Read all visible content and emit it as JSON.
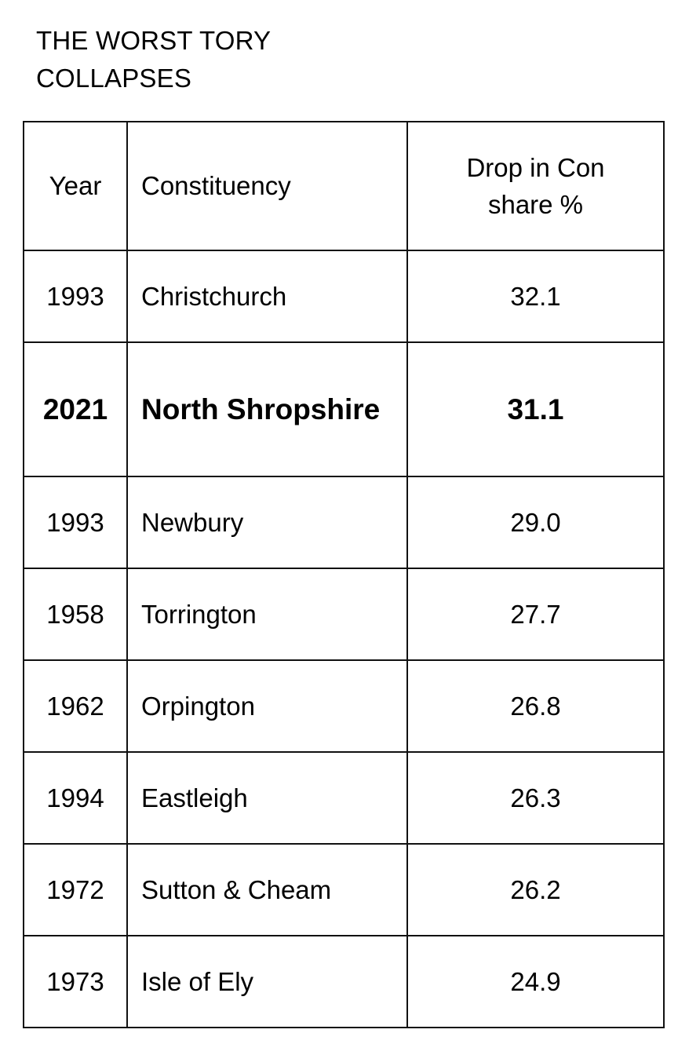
{
  "title": "THE WORST TORY COLLAPSES",
  "table": {
    "headers": {
      "year": "Year",
      "constituency": "Constituency",
      "drop": "Drop in Con share %"
    },
    "rows": [
      {
        "year": "1993",
        "constituency": "Christchurch",
        "drop": "32.1",
        "highlight": false
      },
      {
        "year": "2021",
        "constituency": "North Shropshire",
        "drop": "31.1",
        "highlight": true
      },
      {
        "year": "1993",
        "constituency": "Newbury",
        "drop": "29.0",
        "highlight": false
      },
      {
        "year": "1958",
        "constituency": "Torrington",
        "drop": "27.7",
        "highlight": false
      },
      {
        "year": "1962",
        "constituency": "Orpington",
        "drop": "26.8",
        "highlight": false
      },
      {
        "year": "1994",
        "constituency": "Eastleigh",
        "drop": "26.3",
        "highlight": false
      },
      {
        "year": "1972",
        "constituency": "Sutton & Cheam",
        "drop": "26.2",
        "highlight": false
      },
      {
        "year": "1973",
        "constituency": "Isle of Ely",
        "drop": "24.9",
        "highlight": false
      }
    ]
  }
}
